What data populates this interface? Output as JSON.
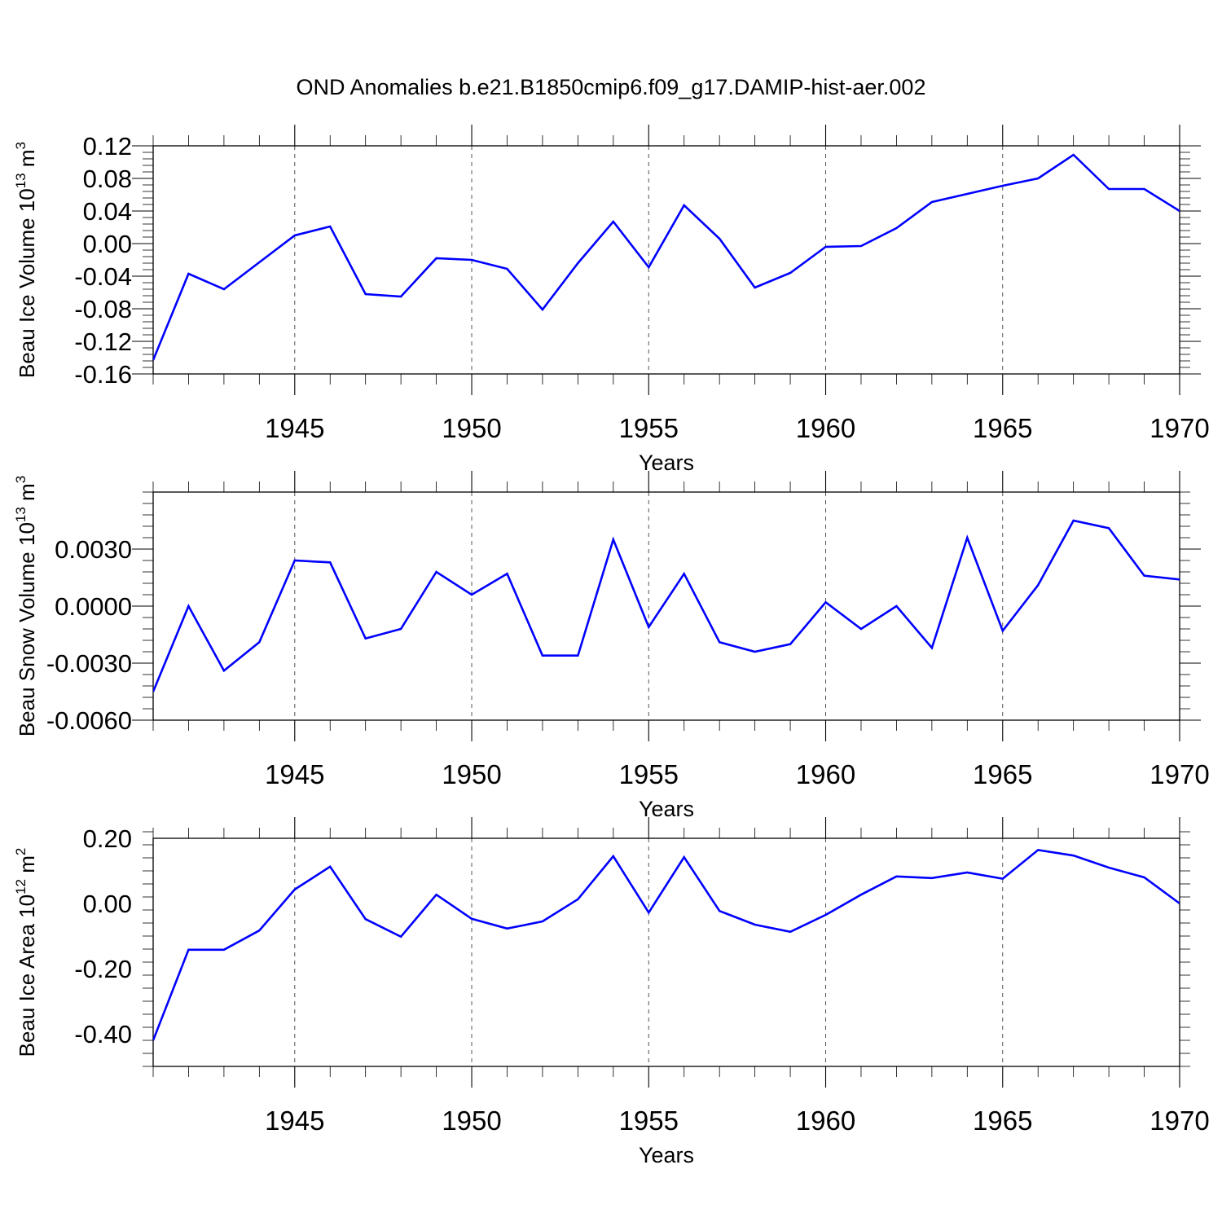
{
  "figure": {
    "title": "OND Anomalies b.e21.B1850cmip6.f09_g17.DAMIP-hist-aer.002"
  },
  "colors": {
    "line": "#0000ff"
  },
  "chart_data": [
    {
      "type": "line",
      "ylabel": "Beau Ice Volume 10",
      "ylabel_sup1": "13",
      "ylabel_mid": " m",
      "ylabel_sup2": "3",
      "xlabel": "Years",
      "xlim": [
        1941,
        1970
      ],
      "ylim": [
        -0.16,
        0.12
      ],
      "yticks": [
        0.12,
        0.08,
        0.04,
        0.0,
        -0.04,
        -0.08,
        -0.12,
        -0.16
      ],
      "ytick_labels": [
        "0.12",
        "0.08",
        "0.04",
        "0.00",
        "-0.04",
        "-0.08",
        "-0.12",
        "-0.16"
      ],
      "xticks": [
        1945,
        1950,
        1955,
        1960,
        1965,
        1970
      ],
      "xtick_labels": [
        "1945",
        "1950",
        "1955",
        "1960",
        "1965",
        "1970"
      ],
      "grid_x": true,
      "series": [
        {
          "x": [
            1941,
            1942,
            1943,
            1944,
            1945,
            1946,
            1947,
            1948,
            1949,
            1950,
            1951,
            1952,
            1953,
            1954,
            1955,
            1956,
            1957,
            1958,
            1959,
            1960,
            1961,
            1962,
            1963,
            1964,
            1965,
            1966,
            1967,
            1968,
            1969,
            1970
          ],
          "values": [
            -0.143,
            -0.037,
            -0.056,
            -0.023,
            0.01,
            0.021,
            -0.062,
            -0.065,
            -0.018,
            -0.02,
            -0.031,
            -0.081,
            -0.024,
            0.027,
            -0.029,
            0.047,
            0.006,
            -0.054,
            -0.036,
            -0.004,
            -0.003,
            0.019,
            0.051,
            0.061,
            0.071,
            0.08,
            0.109,
            0.067,
            0.067,
            0.04
          ]
        }
      ]
    },
    {
      "type": "line",
      "ylabel": "Beau Snow Volume 10",
      "ylabel_sup1": "13",
      "ylabel_mid": " m",
      "ylabel_sup2": "3",
      "xlabel": "Years",
      "xlim": [
        1941,
        1970
      ],
      "ylim": [
        -0.006,
        0.006
      ],
      "yticks": [
        0.003,
        0.0,
        -0.003,
        -0.006
      ],
      "ytick_labels": [
        "0.0030",
        "0.0000",
        "-0.0030",
        "-0.0060"
      ],
      "xticks": [
        1945,
        1950,
        1955,
        1960,
        1965,
        1970
      ],
      "xtick_labels": [
        "1945",
        "1950",
        "1955",
        "1960",
        "1965",
        "1970"
      ],
      "grid_x": true,
      "series": [
        {
          "x": [
            1941,
            1942,
            1943,
            1944,
            1945,
            1946,
            1947,
            1948,
            1949,
            1950,
            1951,
            1952,
            1953,
            1954,
            1955,
            1956,
            1957,
            1958,
            1959,
            1960,
            1961,
            1962,
            1963,
            1964,
            1965,
            1966,
            1967,
            1968,
            1969,
            1970
          ],
          "values": [
            -0.0045,
            0.0,
            -0.0034,
            -0.0019,
            0.0024,
            0.0023,
            -0.0017,
            -0.0012,
            0.0018,
            0.0006,
            0.0017,
            -0.0026,
            -0.0026,
            0.0035,
            -0.0011,
            0.0017,
            -0.0019,
            -0.0024,
            -0.002,
            0.0002,
            -0.0012,
            0.0,
            -0.0022,
            0.0036,
            -0.0013,
            0.0011,
            0.0045,
            0.0041,
            0.0016,
            0.0014
          ]
        }
      ]
    },
    {
      "type": "line",
      "ylabel": "Beau Ice Area 10",
      "ylabel_sup1": "12",
      "ylabel_mid": " m",
      "ylabel_sup2": "2",
      "xlabel": "Years",
      "xlim": [
        1941,
        1970
      ],
      "ylim": [
        -0.5,
        0.2
      ],
      "yticks": [
        0.2,
        0.0,
        -0.2,
        -0.4
      ],
      "ytick_labels": [
        "0.20",
        "0.00",
        "-0.20",
        "-0.40"
      ],
      "xticks": [
        1945,
        1950,
        1955,
        1960,
        1965,
        1970
      ],
      "xtick_labels": [
        "1945",
        "1950",
        "1955",
        "1960",
        "1965",
        "1970"
      ],
      "grid_x": true,
      "series": [
        {
          "x": [
            1941,
            1942,
            1943,
            1944,
            1945,
            1946,
            1947,
            1948,
            1949,
            1950,
            1951,
            1952,
            1953,
            1954,
            1955,
            1956,
            1957,
            1958,
            1959,
            1960,
            1961,
            1962,
            1963,
            1964,
            1965,
            1966,
            1967,
            1968,
            1969,
            1970
          ],
          "values": [
            -0.42,
            -0.142,
            -0.142,
            -0.083,
            0.043,
            0.113,
            -0.048,
            -0.102,
            0.027,
            -0.047,
            -0.077,
            -0.055,
            0.013,
            0.145,
            -0.028,
            0.142,
            -0.023,
            -0.065,
            -0.087,
            -0.035,
            0.027,
            0.083,
            0.078,
            0.095,
            0.076,
            0.164,
            0.147,
            0.11,
            0.08,
            0.0
          ]
        }
      ]
    }
  ]
}
